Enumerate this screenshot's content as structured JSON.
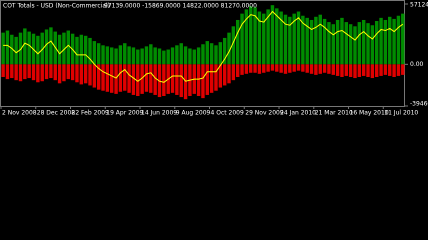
{
  "chart_data": {
    "type": "bar",
    "title": "COT Totals - USD (Non-Commercial)",
    "subtitle": "97139.0000 -15869.0000 14822.0000 81270.0000",
    "categories": [
      "2 Nov 2008",
      null,
      null,
      null,
      null,
      null,
      null,
      null,
      "28 Dec 2008",
      null,
      null,
      null,
      null,
      null,
      null,
      null,
      "22 Feb 2009",
      null,
      null,
      null,
      null,
      null,
      null,
      null,
      "19 Apr 2009",
      null,
      null,
      null,
      null,
      null,
      null,
      null,
      "14 Jun 2009",
      null,
      null,
      null,
      null,
      null,
      null,
      null,
      "9 Aug 2009",
      null,
      null,
      null,
      null,
      null,
      null,
      null,
      "4 Oct 2009",
      null,
      null,
      null,
      null,
      null,
      null,
      null,
      "29 Nov 2009",
      null,
      null,
      null,
      null,
      null,
      null,
      null,
      "24 Jan 2010",
      null,
      null,
      null,
      null,
      null,
      null,
      null,
      "21 Mar 2010",
      null,
      null,
      null,
      null,
      null,
      null,
      null,
      "16 May 2010",
      null,
      null,
      null,
      null,
      null,
      null,
      null,
      "11 Jul 2010",
      null,
      null,
      null,
      null
    ],
    "series": [
      {
        "type": "bar",
        "color": "#008c00",
        "values": [
          30000,
          32000,
          28000,
          26000,
          30000,
          34000,
          31000,
          29000,
          27000,
          30000,
          33000,
          35000,
          31000,
          28000,
          30000,
          32000,
          29000,
          26000,
          28000,
          27000,
          25000,
          22000,
          20000,
          18000,
          17000,
          16000,
          15000,
          18000,
          20000,
          17000,
          16000,
          14000,
          15000,
          17000,
          19000,
          16000,
          15000,
          13000,
          14000,
          16000,
          18000,
          20000,
          17000,
          15000,
          14000,
          16000,
          19000,
          22000,
          20000,
          18000,
          21000,
          25000,
          30000,
          36000,
          42000,
          48000,
          52000,
          55000,
          54000,
          50000,
          48000,
          52000,
          56000,
          53000,
          50000,
          47000,
          45000,
          48000,
          50000,
          46000,
          44000,
          42000,
          45000,
          47000,
          43000,
          40000,
          38000,
          42000,
          44000,
          40000,
          38000,
          36000,
          40000,
          42000,
          39000,
          37000,
          41000,
          44000,
          42000,
          45000,
          43000,
          46000,
          48000
        ]
      },
      {
        "type": "bar",
        "color": "#e00000",
        "values": [
          -12000,
          -14000,
          -13000,
          -15000,
          -16000,
          -14000,
          -13000,
          -15000,
          -17000,
          -16000,
          -14000,
          -13000,
          -15000,
          -18000,
          -16000,
          -14000,
          -15000,
          -17000,
          -19000,
          -18000,
          -20000,
          -22000,
          -24000,
          -25000,
          -26000,
          -27000,
          -28000,
          -26000,
          -25000,
          -27000,
          -29000,
          -30000,
          -28000,
          -26000,
          -27000,
          -29000,
          -31000,
          -30000,
          -28000,
          -27000,
          -29000,
          -31000,
          -33000,
          -30000,
          -28000,
          -30000,
          -32000,
          -29000,
          -27000,
          -25000,
          -22000,
          -20000,
          -18000,
          -15000,
          -12000,
          -10000,
          -9000,
          -8000,
          -8000,
          -9000,
          -8000,
          -7000,
          -6000,
          -7000,
          -8000,
          -9000,
          -8000,
          -7000,
          -6000,
          -7000,
          -8000,
          -9000,
          -10000,
          -9000,
          -8000,
          -9000,
          -10000,
          -11000,
          -12000,
          -11000,
          -12000,
          -13000,
          -12000,
          -11000,
          -12000,
          -13000,
          -12000,
          -11000,
          -10000,
          -11000,
          -12000,
          -11000,
          -10000
        ]
      },
      {
        "type": "line",
        "color": "#ffff00",
        "values": [
          18000,
          18000,
          15000,
          11000,
          14000,
          20000,
          18000,
          14000,
          10000,
          14000,
          19000,
          22000,
          16000,
          10000,
          14000,
          18000,
          14000,
          9000,
          9000,
          9000,
          5000,
          0,
          -4000,
          -7000,
          -9000,
          -11000,
          -13000,
          -8000,
          -5000,
          -10000,
          -13000,
          -16000,
          -13000,
          -9000,
          -8000,
          -13000,
          -16000,
          -17000,
          -14000,
          -11000,
          -11000,
          -11000,
          -16000,
          -15000,
          -14000,
          -14000,
          -13000,
          -7000,
          -7000,
          -7000,
          -1000,
          5000,
          12000,
          21000,
          30000,
          38000,
          43000,
          47000,
          46000,
          41000,
          40000,
          45000,
          50000,
          46000,
          42000,
          38000,
          37000,
          41000,
          44000,
          39000,
          36000,
          33000,
          35000,
          38000,
          35000,
          31000,
          28000,
          31000,
          32000,
          29000,
          26000,
          23000,
          28000,
          31000,
          27000,
          24000,
          29000,
          33000,
          32000,
          34000,
          31000,
          35000,
          38000
        ]
      }
    ],
    "ylim": [
      -39466.6,
      57124.6
    ],
    "yticks": [
      57124.6,
      {
        "value": 0,
        "label": "0.00"
      },
      -39466.6
    ]
  }
}
